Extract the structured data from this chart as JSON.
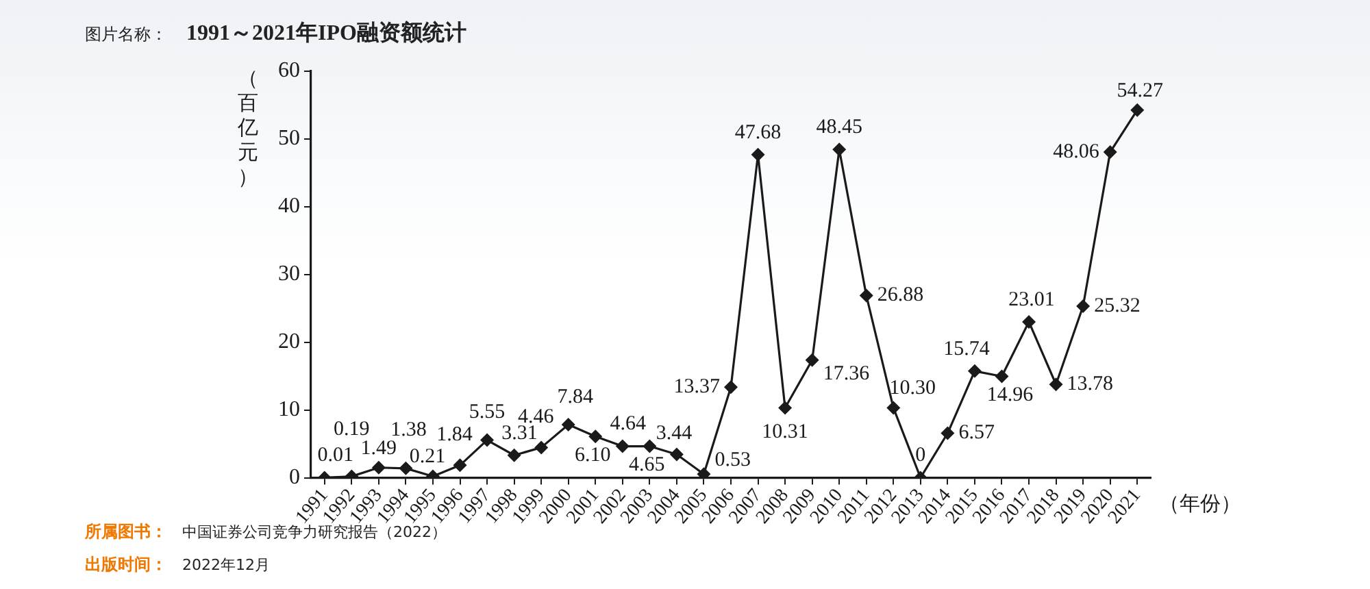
{
  "chart_data": {
    "type": "line",
    "title": "1991～2021年IPO融资额统计",
    "xlabel": "（年份）",
    "ylabel": "（百亿元）",
    "categories": [
      "1991",
      "1992",
      "1993",
      "1994",
      "1995",
      "1996",
      "1997",
      "1998",
      "1999",
      "2000",
      "2001",
      "2002",
      "2003",
      "2004",
      "2005",
      "2006",
      "2007",
      "2008",
      "2009",
      "2010",
      "2011",
      "2012",
      "2013",
      "2014",
      "2015",
      "2016",
      "2017",
      "2018",
      "2019",
      "2020",
      "2021"
    ],
    "series": [
      {
        "color": "#1a1a1a",
        "values": [
          0.01,
          0.19,
          1.49,
          1.38,
          0.21,
          1.84,
          5.55,
          3.31,
          4.46,
          7.84,
          6.1,
          4.64,
          4.65,
          3.44,
          0.53,
          13.37,
          47.68,
          10.31,
          17.36,
          48.45,
          26.88,
          10.3,
          0,
          6.57,
          15.74,
          14.96,
          23.01,
          13.78,
          25.32,
          48.06,
          54.27
        ],
        "value_labels": [
          "0.01",
          "0.19",
          "1.49",
          "1.38",
          "0.21",
          "1.84",
          "5.55",
          "3.31",
          "4.46",
          "7.84",
          "6.10",
          "4.64",
          "4.65",
          "3.44",
          "0.53",
          "13.37",
          "47.68",
          "10.31",
          "17.36",
          "48.45",
          "26.88",
          "10.30",
          "0",
          "6.57",
          "15.74",
          "14.96",
          "23.01",
          "13.78",
          "25.32",
          "48.06",
          "54.27"
        ]
      }
    ],
    "ylim": [
      0,
      60
    ],
    "yticks": [
      0,
      10,
      20,
      30,
      40,
      50,
      60
    ],
    "grid": false,
    "legend": false,
    "marker": "diamond",
    "line_style": "solid",
    "annotations": [
      "图片名称：",
      "所属图书：",
      "中国证券公司竞争力研究报告（2022）",
      "出版时间：",
      "2022年12月"
    ]
  }
}
